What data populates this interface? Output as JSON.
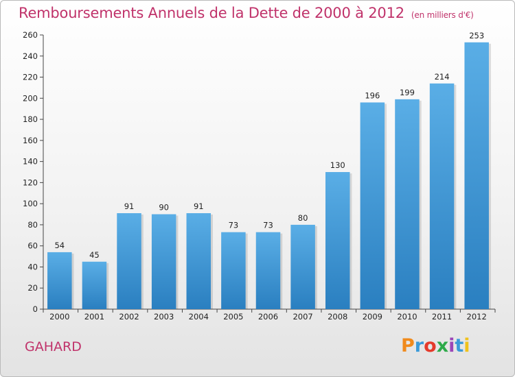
{
  "header": {
    "title": "Remboursements Annuels de la Dette de 2000 à 2012",
    "unit": "(en milliers d'€)"
  },
  "footer": {
    "commune": "GAHARD",
    "logo_text": "Proxiti",
    "logo_colors": [
      "#f08a1c",
      "#3a9ad9",
      "#e53a2b",
      "#2eaa4a",
      "#9b46b8",
      "#3a9ad9",
      "#f0c21c"
    ]
  },
  "chart_data": {
    "type": "bar",
    "title": "Remboursements Annuels de la Dette de 2000 à 2012",
    "subtitle": "(en milliers d'€)",
    "xlabel": "",
    "ylabel": "",
    "categories": [
      "2000",
      "2001",
      "2002",
      "2003",
      "2004",
      "2005",
      "2006",
      "2007",
      "2008",
      "2009",
      "2010",
      "2011",
      "2012"
    ],
    "values": [
      54,
      45,
      91,
      90,
      91,
      73,
      73,
      80,
      130,
      196,
      199,
      214,
      253
    ],
    "ylim": [
      0,
      260
    ],
    "yticks": [
      0,
      20,
      40,
      60,
      80,
      100,
      120,
      140,
      160,
      180,
      200,
      220,
      240,
      260
    ],
    "grid": false,
    "bar_color_top": "#5aaee6",
    "bar_color_bottom": "#2a7fc0"
  }
}
